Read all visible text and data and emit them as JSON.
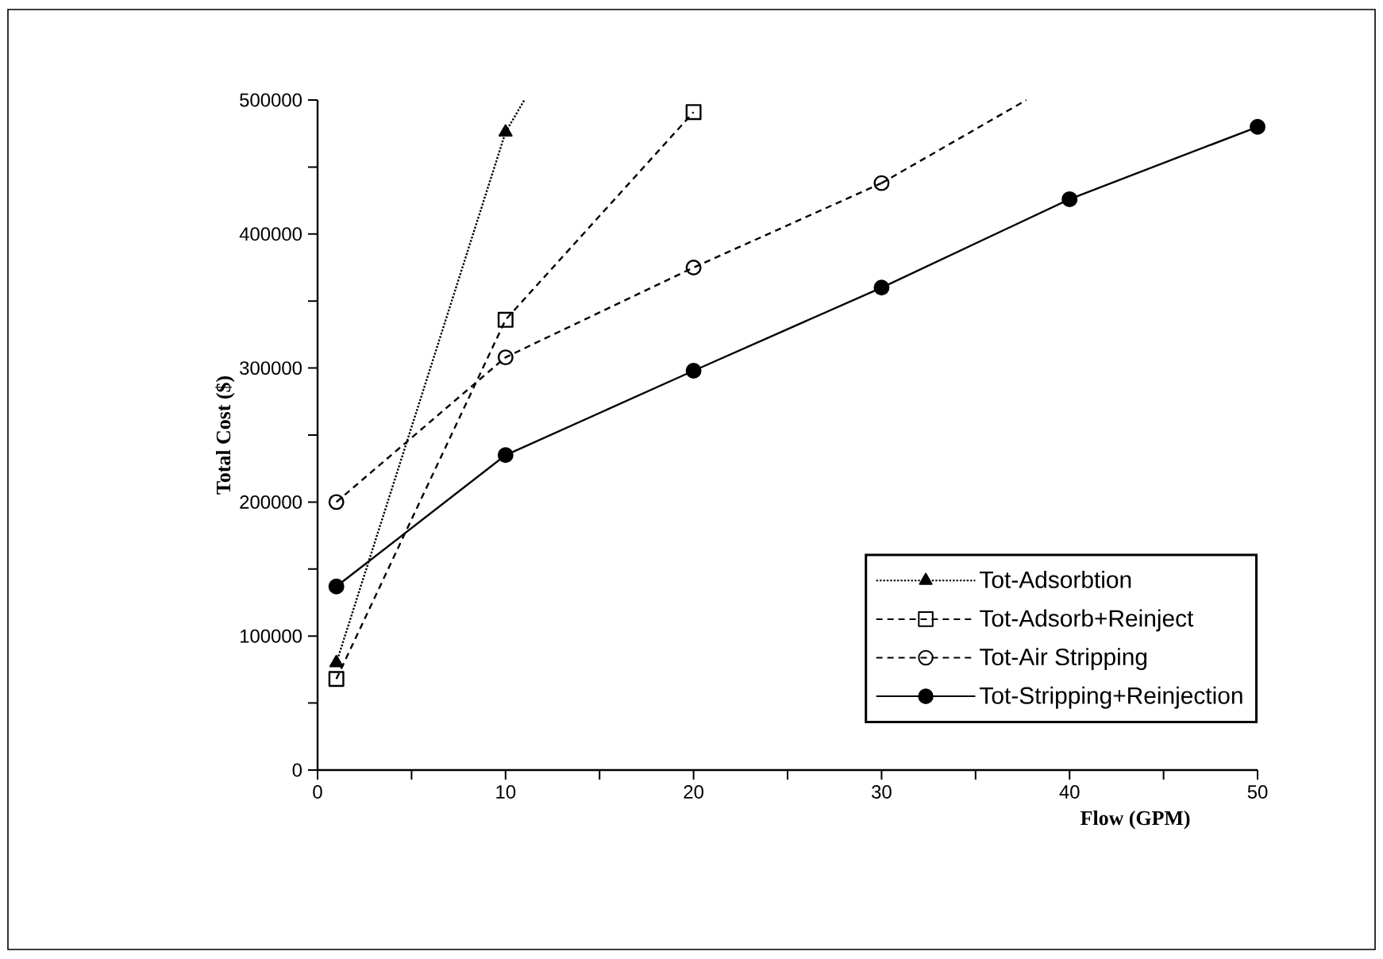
{
  "chart_data": {
    "type": "line",
    "xlabel": "Flow  (GPM)",
    "ylabel": "Total  Cost  ($)",
    "xlim": [
      0,
      50
    ],
    "ylim": [
      0,
      500000
    ],
    "xticks": [
      0,
      {
        "value": 5,
        "label": null
      },
      10,
      {
        "value": 15,
        "label": null
      },
      20,
      {
        "value": 25,
        "label": null
      },
      30,
      {
        "value": 35,
        "label": null
      },
      40,
      {
        "value": 45,
        "label": null
      },
      50
    ],
    "yticks": [
      0,
      {
        "value": 50000,
        "label": null
      },
      100000,
      {
        "value": 150000,
        "label": null
      },
      200000,
      {
        "value": 250000,
        "label": null
      },
      300000,
      {
        "value": 350000,
        "label": null
      },
      400000,
      {
        "value": 450000,
        "label": null
      },
      500000
    ],
    "legend": "bottom right",
    "grid": false,
    "series": [
      {
        "name": "Tot-Adsorbtion",
        "color": "#000000",
        "x": [
          1,
          10
        ],
        "values": [
          80000,
          476000
        ],
        "marker": "triangle",
        "line_style": "dotted"
      },
      {
        "color": "#000000",
        "x": [
          10,
          11
        ],
        "values": [
          476000,
          500000
        ],
        "marker": "none",
        "line_style": "dotted"
      },
      {
        "name": "Tot-Adsorb+Reinject",
        "color": "#000000",
        "x": [
          1,
          10,
          20
        ],
        "values": [
          68000,
          336000,
          491000
        ],
        "marker": "square",
        "line_style": "dashed"
      },
      {
        "name": "Tot-Air Stripping",
        "color": "#000000",
        "x": [
          1,
          10,
          20,
          30
        ],
        "values": [
          200000,
          308000,
          375000,
          438000
        ],
        "marker": "circle",
        "line_style": "dashed"
      },
      {
        "color": "#000000",
        "x": [
          30,
          37.7
        ],
        "values": [
          438000,
          500000
        ],
        "marker": "none",
        "line_style": "dashed"
      },
      {
        "name": "Tot-Stripping+Reinjection",
        "color": "#000000",
        "x": [
          1,
          10,
          20,
          30,
          40,
          50
        ],
        "values": [
          137000,
          235000,
          298000,
          360000,
          426000,
          480000
        ],
        "marker": "circle",
        "line_style": "solid"
      }
    ]
  }
}
